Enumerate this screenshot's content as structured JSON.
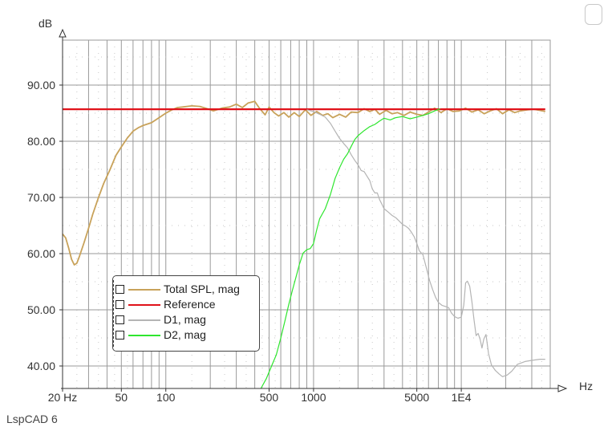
{
  "app": {
    "footer": "LspCAD 6"
  },
  "colors": {
    "background": "#ffffff",
    "grid": "#9a9a9a",
    "total_spl": "#c8a25a",
    "reference": "#e0121a",
    "d1": "#b4b4b4",
    "d2": "#2ee62e"
  },
  "icons": {
    "corner": "checkbox-icon"
  },
  "chart_data": {
    "type": "line",
    "xscale": "log",
    "xlim": [
      20,
      40000
    ],
    "ylim": [
      36,
      98
    ],
    "xunit": "Hz",
    "yunit": "dB",
    "xticks": [
      {
        "value": 20,
        "label": "20 Hz"
      },
      {
        "value": 50,
        "label": "50"
      },
      {
        "value": 100,
        "label": "100"
      },
      {
        "value": 500,
        "label": "500"
      },
      {
        "value": 1000,
        "label": "1000"
      },
      {
        "value": 5000,
        "label": "5000"
      },
      {
        "value": 10000,
        "label": "1E4"
      }
    ],
    "yticks": [
      {
        "value": 40,
        "label": "40.00"
      },
      {
        "value": 50,
        "label": "50.00"
      },
      {
        "value": 60,
        "label": "60.00"
      },
      {
        "value": 70,
        "label": "70.00"
      },
      {
        "value": 80,
        "label": "80.00"
      },
      {
        "value": 90,
        "label": "90.00"
      }
    ],
    "grid": true,
    "legend_position": "lower-left",
    "series": [
      {
        "name": "Total SPL, mag",
        "color": "#c8a25a",
        "points": [
          [
            20,
            63.5
          ],
          [
            21,
            62.8
          ],
          [
            22,
            61
          ],
          [
            23,
            59
          ],
          [
            24,
            58
          ],
          [
            25,
            58.3
          ],
          [
            26,
            59.5
          ],
          [
            28,
            62
          ],
          [
            30,
            64.5
          ],
          [
            32,
            67
          ],
          [
            35,
            70
          ],
          [
            38,
            72.5
          ],
          [
            42,
            75
          ],
          [
            46,
            77.5
          ],
          [
            50,
            79
          ],
          [
            55,
            80.6
          ],
          [
            60,
            81.8
          ],
          [
            65,
            82.4
          ],
          [
            70,
            82.8
          ],
          [
            80,
            83.3
          ],
          [
            90,
            84.2
          ],
          [
            100,
            85
          ],
          [
            110,
            85.6
          ],
          [
            120,
            86
          ],
          [
            130,
            86.1
          ],
          [
            150,
            86.3
          ],
          [
            170,
            86.2
          ],
          [
            190,
            85.8
          ],
          [
            210,
            85.4
          ],
          [
            240,
            85.9
          ],
          [
            270,
            86.1
          ],
          [
            300,
            86.6
          ],
          [
            330,
            86
          ],
          [
            360,
            86.8
          ],
          [
            400,
            87.1
          ],
          [
            430,
            85.9
          ],
          [
            470,
            84.7
          ],
          [
            500,
            86.1
          ],
          [
            540,
            85.1
          ],
          [
            580,
            84.5
          ],
          [
            630,
            85.1
          ],
          [
            680,
            84.3
          ],
          [
            740,
            85.1
          ],
          [
            800,
            84.4
          ],
          [
            880,
            85.6
          ],
          [
            960,
            84.6
          ],
          [
            1050,
            85.3
          ],
          [
            1150,
            84.6
          ],
          [
            1250,
            84.9
          ],
          [
            1350,
            84.2
          ],
          [
            1500,
            84.8
          ],
          [
            1650,
            84.3
          ],
          [
            1800,
            85.2
          ],
          [
            2000,
            85.1
          ],
          [
            2200,
            85.8
          ],
          [
            2400,
            85.3
          ],
          [
            2600,
            85.7
          ],
          [
            2800,
            84.8
          ],
          [
            3100,
            85.5
          ],
          [
            3400,
            84.9
          ],
          [
            3700,
            85.1
          ],
          [
            4100,
            84.6
          ],
          [
            4500,
            85.2
          ],
          [
            5000,
            84.8
          ],
          [
            5500,
            84.6
          ],
          [
            6000,
            85.2
          ],
          [
            6600,
            85.9
          ],
          [
            7300,
            85.1
          ],
          [
            8000,
            85.8
          ],
          [
            8800,
            85.3
          ],
          [
            9700,
            85.4
          ],
          [
            10700,
            85.9
          ],
          [
            11800,
            85.2
          ],
          [
            13000,
            85.6
          ],
          [
            14300,
            84.9
          ],
          [
            15700,
            85.4
          ],
          [
            17300,
            85.8
          ],
          [
            19000,
            84.9
          ],
          [
            21000,
            85.6
          ],
          [
            23000,
            85.1
          ],
          [
            25000,
            85.4
          ],
          [
            28000,
            85.6
          ],
          [
            31000,
            85.7
          ],
          [
            34000,
            85.5
          ],
          [
            37000,
            85.3
          ]
        ]
      },
      {
        "name": "Reference",
        "color": "#e0121a",
        "points": [
          [
            20,
            85.7
          ],
          [
            37000,
            85.7
          ]
        ]
      },
      {
        "name": "D1, mag",
        "color": "#b4b4b4",
        "points": [
          [
            900,
            85.6
          ],
          [
            1000,
            85.3
          ],
          [
            1100,
            84.8
          ],
          [
            1200,
            84.3
          ],
          [
            1300,
            83.2
          ],
          [
            1400,
            81.8
          ],
          [
            1500,
            80.5
          ],
          [
            1600,
            79.6
          ],
          [
            1700,
            78.8
          ],
          [
            1800,
            77.6
          ],
          [
            1900,
            76.6
          ],
          [
            2000,
            75.8
          ],
          [
            2100,
            74.8
          ],
          [
            2200,
            74.6
          ],
          [
            2300,
            73.8
          ],
          [
            2400,
            73
          ],
          [
            2500,
            71.5
          ],
          [
            2600,
            70.8
          ],
          [
            2700,
            70.8
          ],
          [
            2800,
            69.6
          ],
          [
            2900,
            68.8
          ],
          [
            3000,
            68
          ],
          [
            3200,
            67.4
          ],
          [
            3400,
            66.8
          ],
          [
            3600,
            66.4
          ],
          [
            3800,
            65.8
          ],
          [
            4000,
            65.2
          ],
          [
            4200,
            64.9
          ],
          [
            4400,
            64.5
          ],
          [
            4600,
            63.8
          ],
          [
            4800,
            63
          ],
          [
            5000,
            61.8
          ],
          [
            5200,
            60.5
          ],
          [
            5500,
            59.8
          ],
          [
            5800,
            57.5
          ],
          [
            6100,
            55.2
          ],
          [
            6400,
            53.6
          ],
          [
            6700,
            52.2
          ],
          [
            7000,
            51.3
          ],
          [
            7400,
            50.8
          ],
          [
            7800,
            50.6
          ],
          [
            8200,
            50.4
          ],
          [
            8600,
            49.4
          ],
          [
            9000,
            48.8
          ],
          [
            9500,
            48.5
          ],
          [
            10000,
            48.7
          ],
          [
            10400,
            50.8
          ],
          [
            10700,
            54.8
          ],
          [
            11000,
            55.1
          ],
          [
            11400,
            54.2
          ],
          [
            11800,
            51.5
          ],
          [
            12200,
            48.2
          ],
          [
            12600,
            45.4
          ],
          [
            13000,
            45.8
          ],
          [
            13400,
            44.8
          ],
          [
            13800,
            43.2
          ],
          [
            14200,
            44.8
          ],
          [
            14700,
            45.6
          ],
          [
            15300,
            42.2
          ],
          [
            16000,
            40.2
          ],
          [
            17000,
            39.2
          ],
          [
            18000,
            38.6
          ],
          [
            19000,
            38.1
          ],
          [
            20500,
            38.4
          ],
          [
            22000,
            39.1
          ],
          [
            24000,
            40.3
          ],
          [
            27000,
            40.8
          ],
          [
            30000,
            41
          ],
          [
            34000,
            41.2
          ],
          [
            37000,
            41.2
          ]
        ]
      },
      {
        "name": "D2, mag",
        "color": "#2ee62e",
        "points": [
          [
            440,
            36
          ],
          [
            480,
            37.8
          ],
          [
            520,
            40
          ],
          [
            560,
            42
          ],
          [
            600,
            45
          ],
          [
            640,
            48
          ],
          [
            680,
            51
          ],
          [
            720,
            53.5
          ],
          [
            760,
            55.8
          ],
          [
            800,
            58
          ],
          [
            850,
            60.1
          ],
          [
            900,
            60.7
          ],
          [
            950,
            60.9
          ],
          [
            1000,
            61.8
          ],
          [
            1050,
            64.2
          ],
          [
            1100,
            66.2
          ],
          [
            1200,
            68
          ],
          [
            1300,
            70.5
          ],
          [
            1400,
            73.4
          ],
          [
            1500,
            75.3
          ],
          [
            1600,
            76.8
          ],
          [
            1700,
            77.8
          ],
          [
            1800,
            79.1
          ],
          [
            1900,
            80.3
          ],
          [
            2000,
            81
          ],
          [
            2200,
            81.9
          ],
          [
            2400,
            82.6
          ],
          [
            2600,
            83
          ],
          [
            2800,
            83.6
          ],
          [
            3000,
            84.1
          ],
          [
            3300,
            83.8
          ],
          [
            3600,
            84.2
          ],
          [
            4000,
            84.4
          ],
          [
            4500,
            84
          ],
          [
            5000,
            84.3
          ],
          [
            5500,
            84.6
          ],
          [
            6000,
            84.9
          ],
          [
            6600,
            85.4
          ],
          [
            7200,
            85.8
          ]
        ]
      }
    ]
  }
}
